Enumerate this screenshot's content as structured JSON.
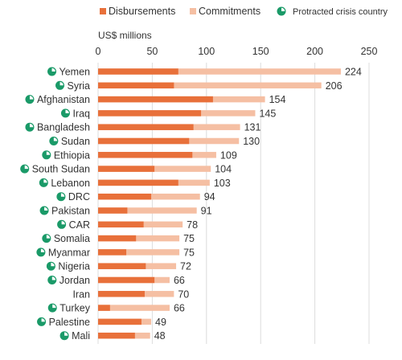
{
  "chart_data": {
    "type": "bar",
    "orientation": "horizontal",
    "stacked": "overlay",
    "unit_label": "US$ millions",
    "xlim": [
      0,
      250
    ],
    "xticks": [
      0,
      50,
      100,
      150,
      200,
      250
    ],
    "grid": "vertical",
    "legend": {
      "position": "top",
      "entries": [
        {
          "label": "Disbursements",
          "color": "#e8703a",
          "shape": "square"
        },
        {
          "label": "Commitments",
          "color": "#f5bfa3",
          "shape": "square"
        },
        {
          "label": "Protracted crisis country",
          "color": "#1a9a68",
          "shape": "pie-icon"
        }
      ]
    },
    "categories": [
      "Yemen",
      "Syria",
      "Afghanistan",
      "Iraq",
      "Bangladesh",
      "Sudan",
      "Ethiopia",
      "South Sudan",
      "Lebanon",
      "DRC",
      "Pakistan",
      "CAR",
      "Somalia",
      "Myanmar",
      "Nigeria",
      "Jordan",
      "Iran",
      "Turkey",
      "Palestine",
      "Mali"
    ],
    "protracted_crisis": [
      true,
      true,
      true,
      true,
      true,
      true,
      true,
      true,
      true,
      true,
      true,
      true,
      true,
      true,
      true,
      true,
      false,
      true,
      true,
      true
    ],
    "series": [
      {
        "name": "Disbursements",
        "color": "#e8703a",
        "values": [
          74,
          70,
          106,
          95,
          88,
          84,
          87,
          52,
          74,
          49,
          27,
          42,
          35,
          26,
          44,
          52,
          43,
          11,
          40,
          34
        ]
      },
      {
        "name": "Commitments",
        "color": "#f5bfa3",
        "values": [
          224,
          206,
          154,
          145,
          131,
          130,
          109,
          104,
          103,
          94,
          91,
          78,
          75,
          75,
          72,
          66,
          70,
          66,
          49,
          48
        ]
      }
    ],
    "data_labels": [
      "224",
      "206",
      "154",
      "145",
      "131",
      "130",
      "109",
      "104",
      "103",
      "94",
      "91",
      "78",
      "75",
      "75",
      "72",
      "66",
      "70",
      "66",
      "49",
      "48"
    ]
  }
}
